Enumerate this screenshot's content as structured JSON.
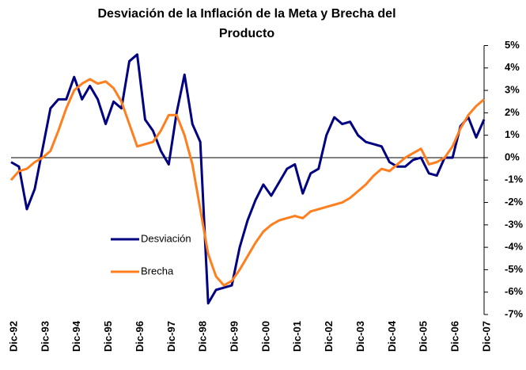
{
  "chart_data": {
    "type": "line",
    "title": [
      "Desviación de la Inflación de la Meta y Brecha del",
      "Producto"
    ],
    "categories": [
      "Dic-92",
      null,
      null,
      null,
      "Dic-93",
      null,
      null,
      null,
      "Dic-94",
      null,
      null,
      null,
      "Dic-95",
      null,
      null,
      null,
      "Dic-96",
      null,
      null,
      null,
      "Dic-97",
      null,
      null,
      null,
      "Dic-98",
      null,
      null,
      null,
      "Dic-99",
      null,
      null,
      null,
      "Dic-00",
      null,
      null,
      null,
      "Dic-01",
      null,
      null,
      null,
      "Dic-02",
      null,
      null,
      null,
      "Dic-03",
      null,
      null,
      null,
      "Dic-04",
      null,
      null,
      null,
      "Dic-05",
      null,
      null,
      null,
      "Dic-06",
      null,
      null,
      null,
      "Dic-07"
    ],
    "series": [
      {
        "name": "Desviación",
        "color": "#000080",
        "values": [
          -0.2,
          -0.4,
          -2.3,
          -1.4,
          0.4,
          2.2,
          2.6,
          2.6,
          3.6,
          2.6,
          3.2,
          2.6,
          1.5,
          2.5,
          2.2,
          4.3,
          4.6,
          1.7,
          1.2,
          0.3,
          -0.3,
          2.0,
          3.7,
          1.5,
          0.7,
          -6.5,
          -5.9,
          -5.8,
          -5.7,
          -4.0,
          -2.8,
          -1.9,
          -1.2,
          -1.7,
          -1.1,
          -0.5,
          -0.3,
          -1.6,
          -0.7,
          -0.5,
          1.0,
          1.8,
          1.5,
          1.6,
          1.0,
          0.7,
          0.6,
          0.5,
          -0.2,
          -0.4,
          -0.4,
          -0.1,
          0.0,
          -0.7,
          -0.8,
          0.0,
          0.0,
          1.4,
          1.8,
          0.9,
          1.7
        ]
      },
      {
        "name": "Brecha",
        "color": "#ff7f1e",
        "values": [
          -1.0,
          -0.6,
          -0.5,
          -0.2,
          0.0,
          0.3,
          1.2,
          2.2,
          3.0,
          3.3,
          3.5,
          3.3,
          3.4,
          3.1,
          2.5,
          1.5,
          0.5,
          0.6,
          0.7,
          1.2,
          1.9,
          1.9,
          1.0,
          -0.3,
          -2.3,
          -4.3,
          -5.3,
          -5.7,
          -5.5,
          -5.0,
          -4.4,
          -3.8,
          -3.3,
          -3.0,
          -2.8,
          -2.7,
          -2.6,
          -2.7,
          -2.4,
          -2.3,
          -2.2,
          -2.1,
          -2.0,
          -1.8,
          -1.5,
          -1.2,
          -0.8,
          -0.5,
          -0.6,
          -0.3,
          0.0,
          0.2,
          0.4,
          -0.3,
          -0.2,
          0.0,
          0.5,
          1.3,
          1.9,
          2.3,
          2.6
        ]
      }
    ],
    "ylim": [
      -7,
      5
    ],
    "yticks": [
      {
        "value": -7,
        "label": "-7%"
      },
      {
        "value": -6,
        "label": "-6%"
      },
      {
        "value": -5,
        "label": "-5%"
      },
      {
        "value": -4,
        "label": "-4%"
      },
      {
        "value": -3,
        "label": "-3%"
      },
      {
        "value": -2,
        "label": "-2%"
      },
      {
        "value": -1,
        "label": "-1%"
      },
      {
        "value": 0,
        "label": "0%"
      },
      {
        "value": 1,
        "label": "1%"
      },
      {
        "value": 2,
        "label": "2%"
      },
      {
        "value": 3,
        "label": "3%"
      },
      {
        "value": 4,
        "label": "4%"
      },
      {
        "value": 5,
        "label": "5%"
      }
    ],
    "y_axis_side": "right",
    "grid": false,
    "legend": "lower left"
  }
}
